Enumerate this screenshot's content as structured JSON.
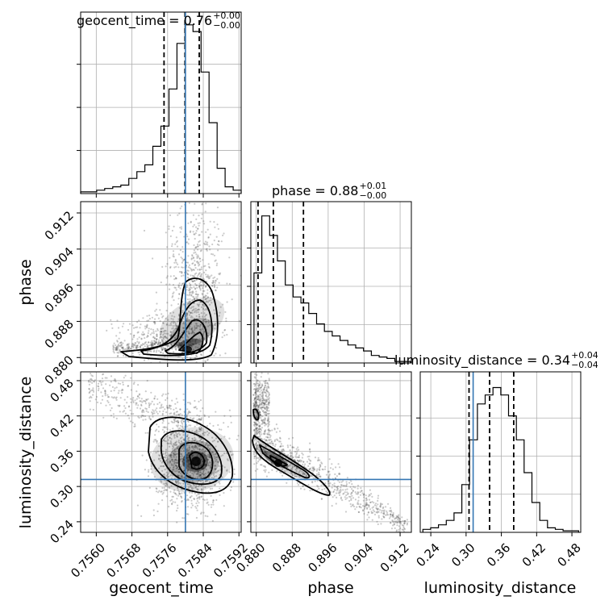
{
  "chart_data": {
    "type": "corner",
    "parameters": [
      "geocent_time",
      "phase",
      "luminosity_distance"
    ],
    "truths": {
      "geocent_time": 0.758,
      "phase": null,
      "luminosity_distance": 0.312
    },
    "axes": {
      "geocent_time": {
        "lim": [
          0.75565,
          0.75925
        ],
        "ticks": [
          "0.7560",
          "0.7568",
          "0.7576",
          "0.7584",
          "0.7592"
        ],
        "tick_values": [
          0.756,
          0.7568,
          0.7576,
          0.7584,
          0.7592
        ]
      },
      "phase": {
        "lim": [
          0.8788,
          0.9145
        ],
        "ticks": [
          "0.880",
          "0.888",
          "0.896",
          "0.904",
          "0.912"
        ],
        "tick_values": [
          0.88,
          0.888,
          0.896,
          0.904,
          0.912
        ]
      },
      "luminosity_distance": {
        "lim": [
          0.222,
          0.495
        ],
        "ticks": [
          "0.24",
          "0.30",
          "0.36",
          "0.42",
          "0.48"
        ],
        "tick_values": [
          0.24,
          0.3,
          0.36,
          0.42,
          0.48
        ]
      }
    },
    "titles": [
      {
        "param": "geocent_time",
        "main": "geocent_time = 0.76",
        "plus": "+0.00",
        "minus": "−0.00"
      },
      {
        "param": "phase",
        "main": "phase = 0.88",
        "plus": "+0.01",
        "minus": "−0.00"
      },
      {
        "param": "luminosity_distance",
        "main": "luminosity_distance = 0.34",
        "plus": "+0.04",
        "minus": "−0.04"
      }
    ],
    "quantiles": {
      "geocent_time": [
        0.75752,
        0.75799,
        0.75831
      ],
      "phase": [
        0.8804,
        0.8838,
        0.8905
      ],
      "luminosity_distance": [
        0.305,
        0.34,
        0.381
      ]
    },
    "hist_geocent_time": {
      "edges_start": 0.75565,
      "bin_width": 0.00018,
      "counts": [
        0.01,
        0.01,
        0.02,
        0.03,
        0.04,
        0.05,
        0.09,
        0.13,
        0.17,
        0.28,
        0.4,
        0.62,
        0.89,
        1.0,
        0.96,
        0.72,
        0.42,
        0.15,
        0.04,
        0.02
      ]
    },
    "hist_phase": {
      "edges_start": 0.8795,
      "bin_width": 0.00174,
      "counts": [
        0.6,
        0.98,
        0.85,
        0.68,
        0.52,
        0.44,
        0.4,
        0.33,
        0.26,
        0.21,
        0.18,
        0.15,
        0.12,
        0.1,
        0.08,
        0.05,
        0.04,
        0.03,
        0.01,
        0.01
      ]
    },
    "hist_luminosity_distance": {
      "edges_start": 0.2265,
      "bin_width": 0.01325,
      "counts": [
        0.02,
        0.03,
        0.05,
        0.08,
        0.13,
        0.32,
        0.62,
        0.86,
        0.92,
        0.97,
        0.92,
        0.78,
        0.62,
        0.4,
        0.2,
        0.08,
        0.03,
        0.02,
        0.01,
        0.01
      ]
    },
    "xlabels": [
      "geocent_time",
      "phase",
      "luminosity_distance"
    ],
    "ylabels": [
      "phase",
      "luminosity_distance"
    ],
    "grid": true,
    "colors": {
      "truth": "#3476b3",
      "hist": "#000000",
      "scatter": "#555555"
    }
  }
}
